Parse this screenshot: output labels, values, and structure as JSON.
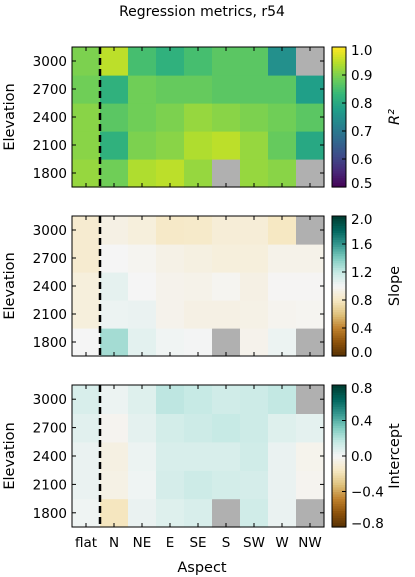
{
  "chart_data": {
    "type": "heatmap",
    "title": "Regression metrics, r54",
    "x_categories": [
      "flat",
      "N",
      "NE",
      "E",
      "SE",
      "S",
      "SW",
      "W",
      "NW"
    ],
    "y_categories": [
      "1800",
      "2100",
      "2400",
      "2700",
      "3000"
    ],
    "xlabel": "Aspect",
    "ylabel": "Elevation",
    "divider_after": "flat",
    "missing_color": "#b0b0b0",
    "panels": [
      {
        "name": "r2",
        "colorbar_label": "R²",
        "colormap": "viridis",
        "vmin": 0.5,
        "vmax": 1.0,
        "colorbar_ticks": [
          "0.5",
          "0.6",
          "0.7",
          "0.8",
          "0.9",
          "1.0"
        ],
        "values": [
          [
            0.92,
            0.89,
            0.94,
            0.95,
            0.92,
            null,
            0.92,
            0.91,
            null
          ],
          [
            0.91,
            0.82,
            0.9,
            0.91,
            0.94,
            0.95,
            0.92,
            0.88,
            0.8
          ],
          [
            0.91,
            0.87,
            0.89,
            0.9,
            0.92,
            0.91,
            0.9,
            0.89,
            0.87
          ],
          [
            0.89,
            0.82,
            0.89,
            0.88,
            0.88,
            0.87,
            0.87,
            0.87,
            0.78
          ],
          [
            0.9,
            0.95,
            0.85,
            0.82,
            0.85,
            0.87,
            0.87,
            0.75,
            null
          ]
        ]
      },
      {
        "name": "slope",
        "colorbar_label": "Slope",
        "colormap": "BrBG",
        "vmin": 0.0,
        "vmax": 2.0,
        "colorbar_ticks": [
          "0.0",
          "0.4",
          "0.8",
          "1.2",
          "1.6",
          "2.0"
        ],
        "values": [
          [
            1.0,
            1.3,
            1.08,
            1.02,
            1.01,
            null,
            0.96,
            1.04,
            null
          ],
          [
            0.9,
            1.04,
            1.05,
            0.96,
            0.93,
            0.93,
            0.94,
            0.97,
            0.98
          ],
          [
            0.9,
            1.07,
            1.0,
            0.96,
            0.95,
            0.98,
            0.93,
            0.99,
            0.99
          ],
          [
            0.85,
            1.0,
            0.98,
            0.94,
            0.92,
            0.9,
            0.9,
            0.95,
            0.95
          ],
          [
            0.85,
            0.93,
            0.9,
            0.82,
            0.83,
            0.88,
            0.88,
            0.8,
            null
          ]
        ]
      },
      {
        "name": "intercept",
        "colorbar_label": "Intercept",
        "colormap": "BrBG",
        "vmin": -0.8,
        "vmax": 0.8,
        "colorbar_ticks": [
          "−0.8",
          "−0.4",
          "0.0",
          "0.4",
          "0.8"
        ],
        "values": [
          [
            0.02,
            -0.17,
            0.04,
            0.08,
            0.1,
            null,
            0.13,
            0.04,
            null
          ],
          [
            0.04,
            -0.05,
            0.02,
            0.11,
            0.14,
            0.12,
            0.11,
            0.04,
            -0.02
          ],
          [
            0.04,
            -0.06,
            0.03,
            0.1,
            0.1,
            0.1,
            0.13,
            0.04,
            -0.03
          ],
          [
            0.07,
            -0.02,
            0.06,
            0.12,
            0.14,
            0.16,
            0.14,
            0.08,
            0.06
          ],
          [
            0.1,
            0.03,
            0.08,
            0.18,
            0.16,
            0.13,
            0.14,
            0.17,
            null
          ]
        ]
      }
    ]
  }
}
